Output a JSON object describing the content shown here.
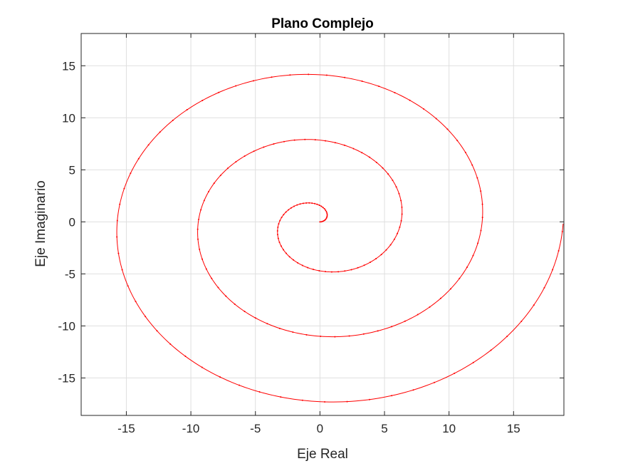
{
  "chart_data": {
    "type": "line",
    "title": "Plano Complejo",
    "xlabel": "Eje Real",
    "ylabel": "Eje Imaginario",
    "xlim": [
      -18.5,
      18.9
    ],
    "ylim": [
      -18.6,
      18.1
    ],
    "xticks": [
      -15,
      -10,
      -5,
      0,
      5,
      10,
      15
    ],
    "yticks": [
      -15,
      -10,
      -5,
      0,
      5,
      10,
      15
    ],
    "xtick_labels": [
      "-15",
      "-10",
      "-5",
      "0",
      "5",
      "10",
      "15"
    ],
    "ytick_labels": [
      "-15",
      "-10",
      "-5",
      "0",
      "5",
      "10",
      "15"
    ],
    "grid": true,
    "series": [
      {
        "function": "z(t) = t·e^{it}",
        "t_range": [
          0,
          18.85
        ],
        "point_step": 0.1,
        "color": "#ff0000",
        "marker": "point"
      }
    ]
  }
}
